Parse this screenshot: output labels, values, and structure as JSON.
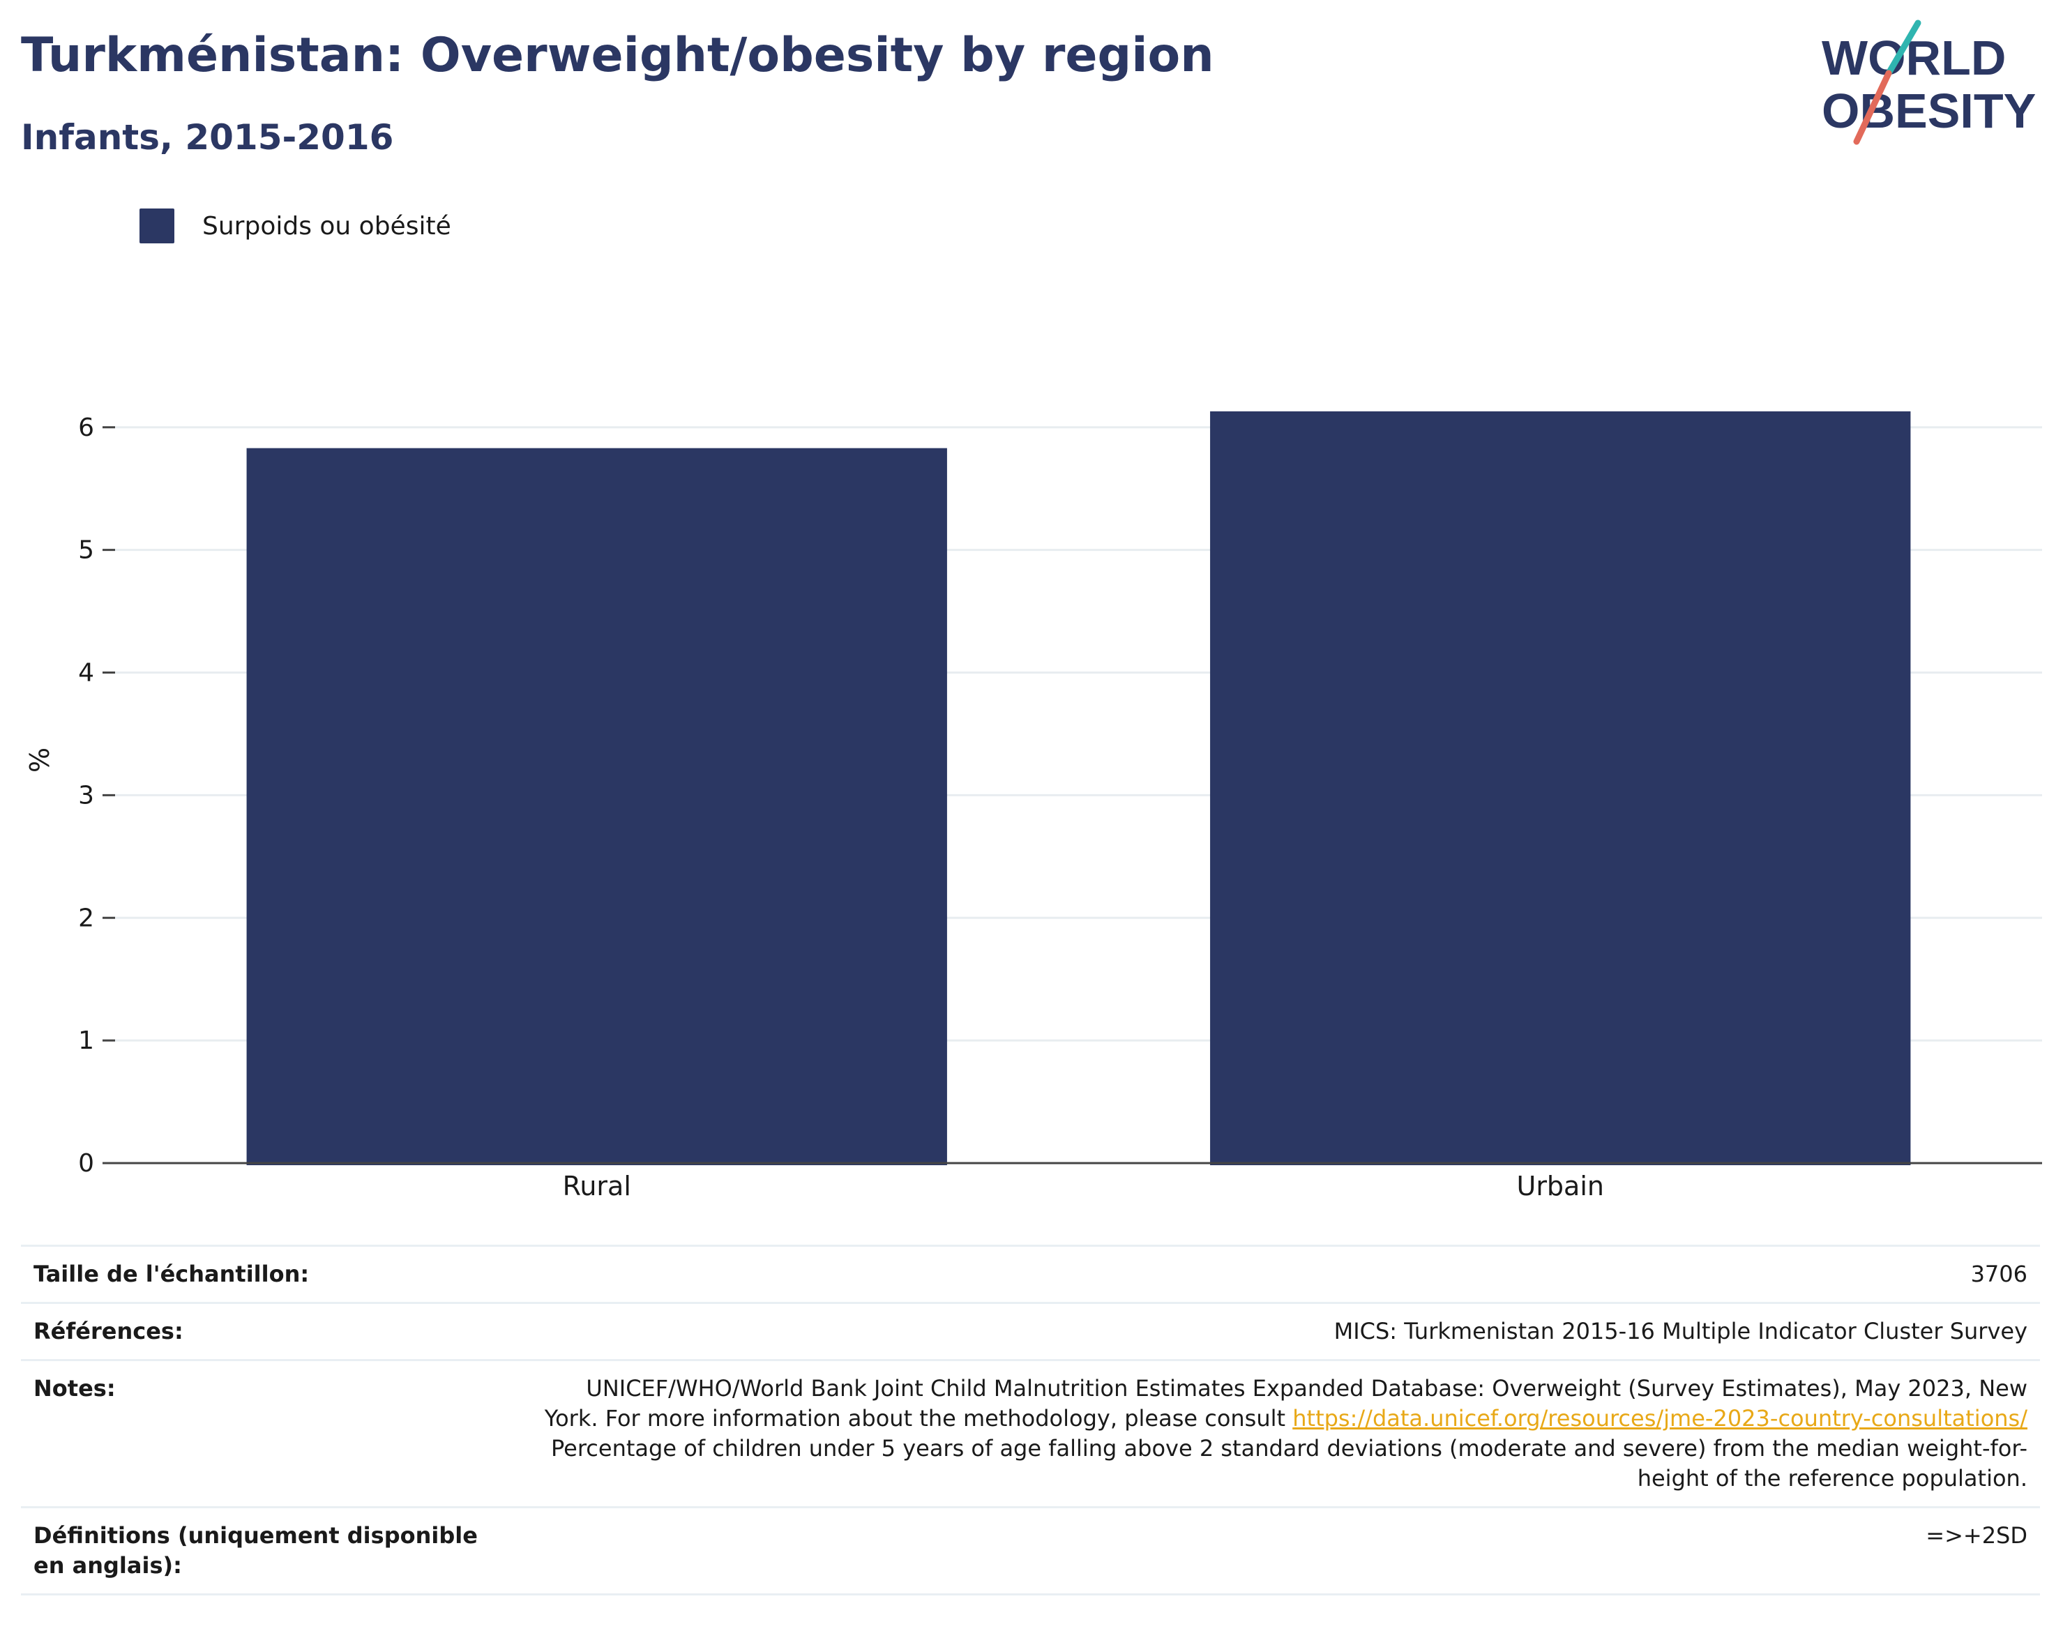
{
  "header": {
    "title": "Turkménistan: Overweight/obesity by region",
    "subtitle": "Infants, 2015-2016"
  },
  "logo": {
    "line1": "WORLD",
    "line2": "OBESITY",
    "text_color": "#2b3763",
    "slash_color_top": "#2fb5b0",
    "slash_color_bottom": "#e26a5a"
  },
  "legend": {
    "items": [
      {
        "label": "Surpoids ou obésité",
        "color": "#2b3763"
      }
    ]
  },
  "chart_data": {
    "type": "bar",
    "categories": [
      "Rural",
      "Urbain"
    ],
    "series": [
      {
        "name": "Surpoids ou obésité",
        "values": [
          5.83,
          6.13
        ],
        "color": "#2b3763"
      }
    ],
    "ylabel": "%",
    "xlabel": "",
    "ylim": [
      0,
      6.3
    ],
    "yticks": [
      0,
      1,
      2,
      3,
      4,
      5,
      6
    ],
    "grid": true,
    "legend_position": "top-left"
  },
  "info": {
    "sample_size_label": "Taille de l'échantillon:",
    "sample_size_value": "3706",
    "references_label": "Références:",
    "references_value": "MICS: Turkmenistan 2015-16 Multiple Indicator Cluster Survey",
    "notes_label": "Notes:",
    "notes_text_1": "UNICEF/WHO/World Bank Joint Child Malnutrition Estimates Expanded Database: Overweight (Survey Estimates), May 2023, New York. For more information about the methodology, please consult ",
    "notes_link": "https://data.unicef.org/resources/jme-2023-country-consultations/",
    "notes_text_2": " Percentage of children under 5 years of age falling above 2 standard deviations (moderate and severe) from the median weight-for-height of the reference population.",
    "definitions_label": "Définitions (uniquement disponible en anglais):",
    "definitions_value": "=>+2SD"
  }
}
